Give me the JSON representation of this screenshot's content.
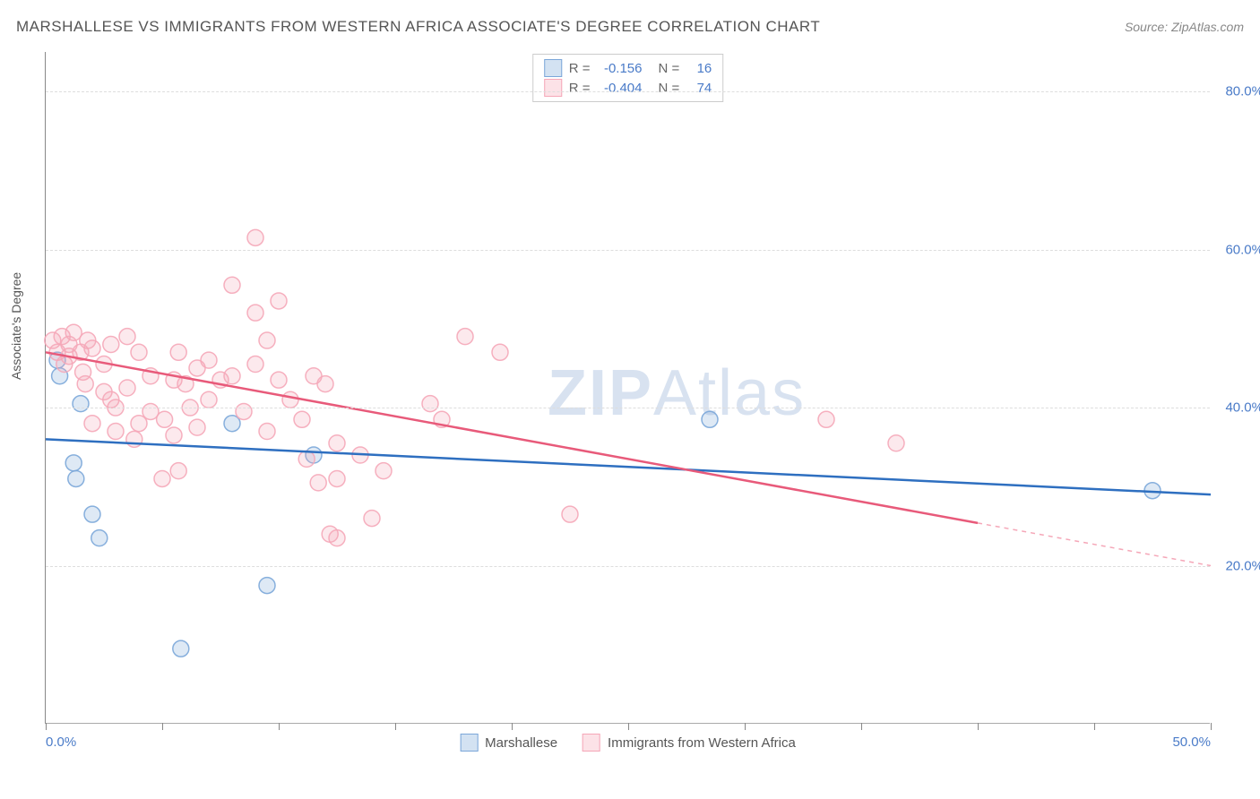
{
  "title": "MARSHALLESE VS IMMIGRANTS FROM WESTERN AFRICA ASSOCIATE'S DEGREE CORRELATION CHART",
  "source": "Source: ZipAtlas.com",
  "y_axis_label": "Associate's Degree",
  "watermark": {
    "part1": "ZIP",
    "part2": "Atlas"
  },
  "chart": {
    "type": "scatter",
    "xlim": [
      0,
      50
    ],
    "ylim": [
      0,
      85
    ],
    "x_ticks": [
      0,
      5,
      10,
      15,
      20,
      25,
      30,
      35,
      40,
      45,
      50
    ],
    "x_tick_labels": {
      "0": "0.0%",
      "50": "50.0%"
    },
    "y_gridlines": [
      20,
      40,
      60,
      80
    ],
    "y_tick_labels": {
      "20": "20.0%",
      "40": "40.0%",
      "60": "60.0%",
      "80": "80.0%"
    },
    "background_color": "#ffffff",
    "grid_color": "#dddddd",
    "axis_color": "#888888",
    "tick_label_color": "#4a7bc8",
    "marker_radius": 9,
    "marker_stroke_width": 1.5,
    "marker_fill_opacity": 0.25,
    "marker_stroke_opacity": 0.9,
    "trend_line_width": 2.5,
    "trend_dash_width": 1.5
  },
  "series": [
    {
      "name": "Marshallese",
      "color": "#7ba7d9",
      "line_color": "#2e6fc0",
      "R": "-0.156",
      "N": "16",
      "points": [
        [
          0.5,
          46
        ],
        [
          0.6,
          44
        ],
        [
          1.5,
          40.5
        ],
        [
          1.2,
          33
        ],
        [
          1.3,
          31
        ],
        [
          2.3,
          23.5
        ],
        [
          2.0,
          26.5
        ],
        [
          8.0,
          38
        ],
        [
          9.5,
          17.5
        ],
        [
          5.8,
          9.5
        ],
        [
          11.5,
          34
        ],
        [
          28.5,
          38.5
        ],
        [
          47.5,
          29.5
        ]
      ],
      "trend": {
        "x1": 0,
        "y1": 36,
        "x2": 50,
        "y2": 29,
        "dash_from_x": null
      }
    },
    {
      "name": "Immigrants from Western Africa",
      "color": "#f5a7b8",
      "line_color": "#e85a7a",
      "R": "-0.404",
      "N": "74",
      "points": [
        [
          0.3,
          48.5
        ],
        [
          0.5,
          47
        ],
        [
          0.7,
          49
        ],
        [
          0.8,
          45.5
        ],
        [
          1.0,
          46.5
        ],
        [
          1.0,
          48
        ],
        [
          1.2,
          49.5
        ],
        [
          1.5,
          47
        ],
        [
          1.6,
          44.5
        ],
        [
          1.8,
          48.5
        ],
        [
          1.7,
          43
        ],
        [
          2.0,
          38
        ],
        [
          2.0,
          47.5
        ],
        [
          2.5,
          42
        ],
        [
          2.5,
          45.5
        ],
        [
          2.8,
          41
        ],
        [
          2.8,
          48
        ],
        [
          3.0,
          40
        ],
        [
          3.0,
          37
        ],
        [
          3.5,
          42.5
        ],
        [
          3.5,
          49
        ],
        [
          3.8,
          36
        ],
        [
          4.0,
          38
        ],
        [
          4.0,
          47
        ],
        [
          4.5,
          39.5
        ],
        [
          4.5,
          44
        ],
        [
          5.0,
          31
        ],
        [
          5.1,
          38.5
        ],
        [
          5.5,
          36.5
        ],
        [
          5.5,
          43.5
        ],
        [
          5.7,
          47
        ],
        [
          5.7,
          32
        ],
        [
          6.0,
          43
        ],
        [
          6.2,
          40
        ],
        [
          6.5,
          37.5
        ],
        [
          6.5,
          45
        ],
        [
          7.0,
          41
        ],
        [
          7.0,
          46
        ],
        [
          7.5,
          43.5
        ],
        [
          8.0,
          55.5
        ],
        [
          8.0,
          44
        ],
        [
          8.5,
          39.5
        ],
        [
          9.0,
          61.5
        ],
        [
          9.0,
          52
        ],
        [
          9.0,
          45.5
        ],
        [
          9.5,
          48.5
        ],
        [
          9.5,
          37
        ],
        [
          10.0,
          53.5
        ],
        [
          10.0,
          43.5
        ],
        [
          10.5,
          41
        ],
        [
          11.0,
          38.5
        ],
        [
          11.2,
          33.5
        ],
        [
          11.5,
          44
        ],
        [
          11.7,
          30.5
        ],
        [
          12.0,
          43
        ],
        [
          12.2,
          24
        ],
        [
          12.5,
          35.5
        ],
        [
          12.5,
          23.5
        ],
        [
          12.5,
          31
        ],
        [
          13.5,
          34
        ],
        [
          14.0,
          26
        ],
        [
          14.5,
          32
        ],
        [
          16.5,
          40.5
        ],
        [
          17.0,
          38.5
        ],
        [
          18.0,
          49
        ],
        [
          19.5,
          47
        ],
        [
          22.5,
          26.5
        ],
        [
          33.5,
          38.5
        ],
        [
          36.5,
          35.5
        ]
      ],
      "trend": {
        "x1": 0,
        "y1": 47,
        "x2": 50,
        "y2": 20,
        "dash_from_x": 40
      }
    }
  ],
  "legend_labels": {
    "R": "R =",
    "N": "N ="
  }
}
